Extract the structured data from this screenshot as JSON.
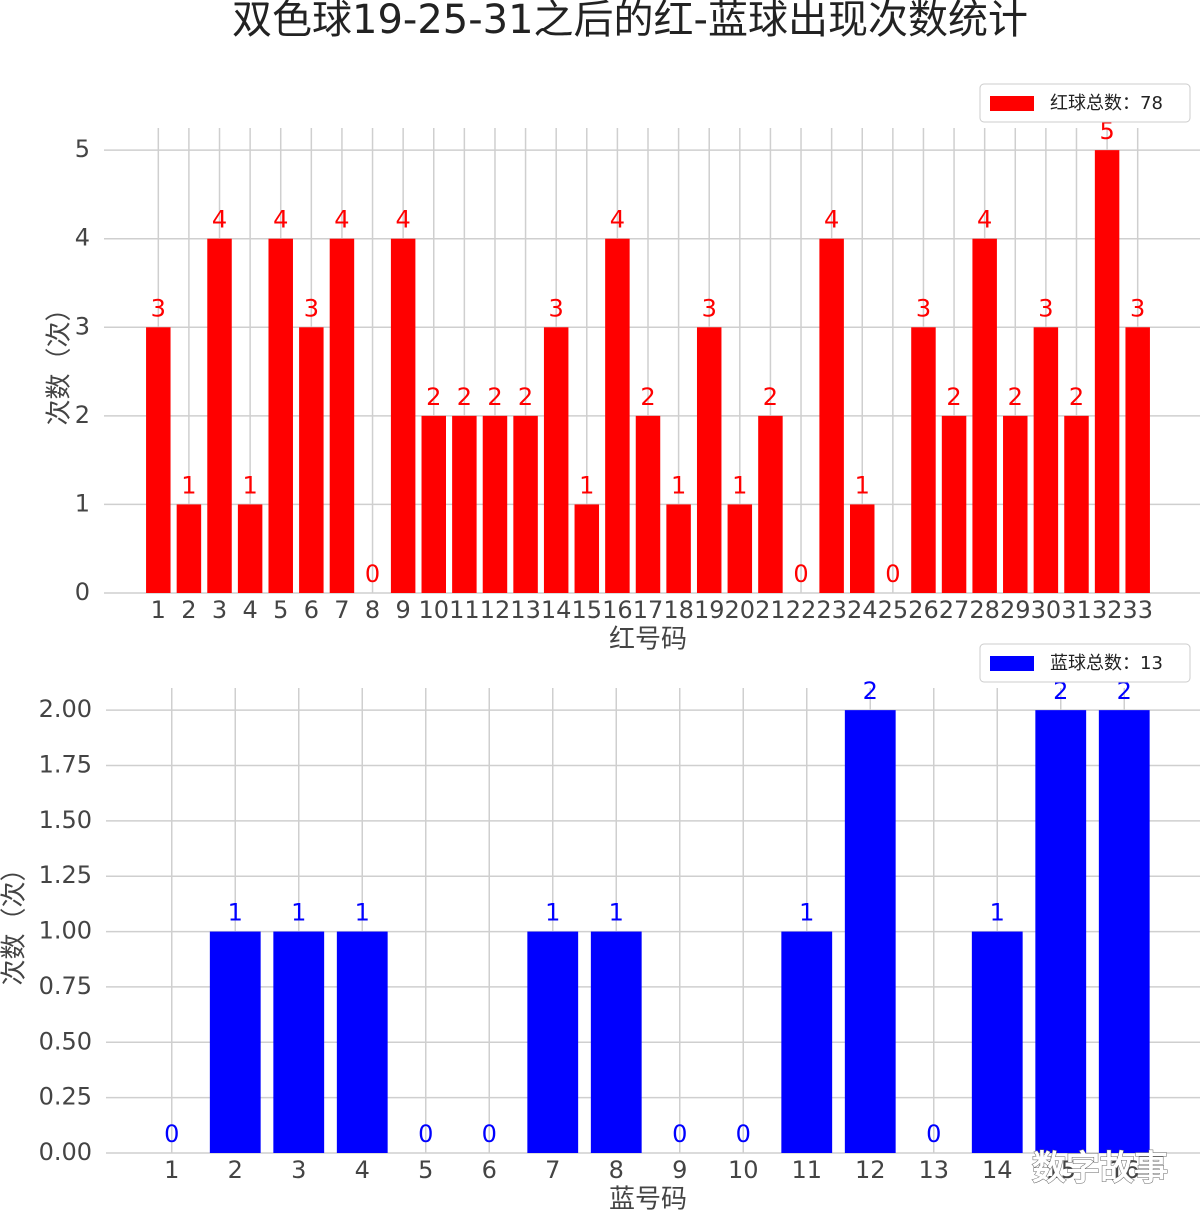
{
  "title": "双色球19-25-31之后的红-蓝球出现次数统计",
  "watermark": "数字故事",
  "chart_data": [
    {
      "type": "bar",
      "xlabel": "红号码",
      "ylabel": "次数（次）",
      "categories": [
        "1",
        "2",
        "3",
        "4",
        "5",
        "6",
        "7",
        "8",
        "9",
        "10",
        "11",
        "12",
        "13",
        "14",
        "15",
        "16",
        "17",
        "18",
        "19",
        "20",
        "21",
        "22",
        "23",
        "24",
        "25",
        "26",
        "27",
        "28",
        "29",
        "30",
        "31",
        "32",
        "33"
      ],
      "series": [
        {
          "name": "红球总数：78",
          "color": "#ff0000",
          "values": [
            3,
            1,
            4,
            1,
            4,
            3,
            4,
            0,
            4,
            2,
            2,
            2,
            2,
            3,
            1,
            4,
            2,
            1,
            3,
            1,
            2,
            0,
            4,
            1,
            0,
            3,
            2,
            4,
            2,
            3,
            2,
            5,
            3
          ]
        }
      ],
      "ylim": [
        0,
        5.25
      ],
      "yticks": [
        0,
        1,
        2,
        3,
        4,
        5
      ],
      "grid": true,
      "legend": "upper right"
    },
    {
      "type": "bar",
      "xlabel": "蓝号码",
      "ylabel": "次数（次）",
      "categories": [
        "1",
        "2",
        "3",
        "4",
        "5",
        "6",
        "7",
        "8",
        "9",
        "10",
        "11",
        "12",
        "13",
        "14",
        "15",
        "16"
      ],
      "series": [
        {
          "name": "蓝球总数：13",
          "color": "#0000ff",
          "values": [
            0,
            1,
            1,
            1,
            0,
            0,
            1,
            1,
            0,
            0,
            1,
            2,
            0,
            1,
            2,
            2
          ]
        }
      ],
      "ylim": [
        0,
        2.1
      ],
      "yticks": [
        {
          "value": 0,
          "label": "0.00"
        },
        {
          "value": 0.25,
          "label": "0.25"
        },
        {
          "value": 0.5,
          "label": "0.50"
        },
        {
          "value": 0.75,
          "label": "0.75"
        },
        {
          "value": 1,
          "label": "1.00"
        },
        {
          "value": 1.25,
          "label": "1.25"
        },
        {
          "value": 1.5,
          "label": "1.50"
        },
        {
          "value": 1.75,
          "label": "1.75"
        },
        {
          "value": 2,
          "label": "2.00"
        }
      ],
      "grid": true,
      "legend": "upper right"
    }
  ]
}
